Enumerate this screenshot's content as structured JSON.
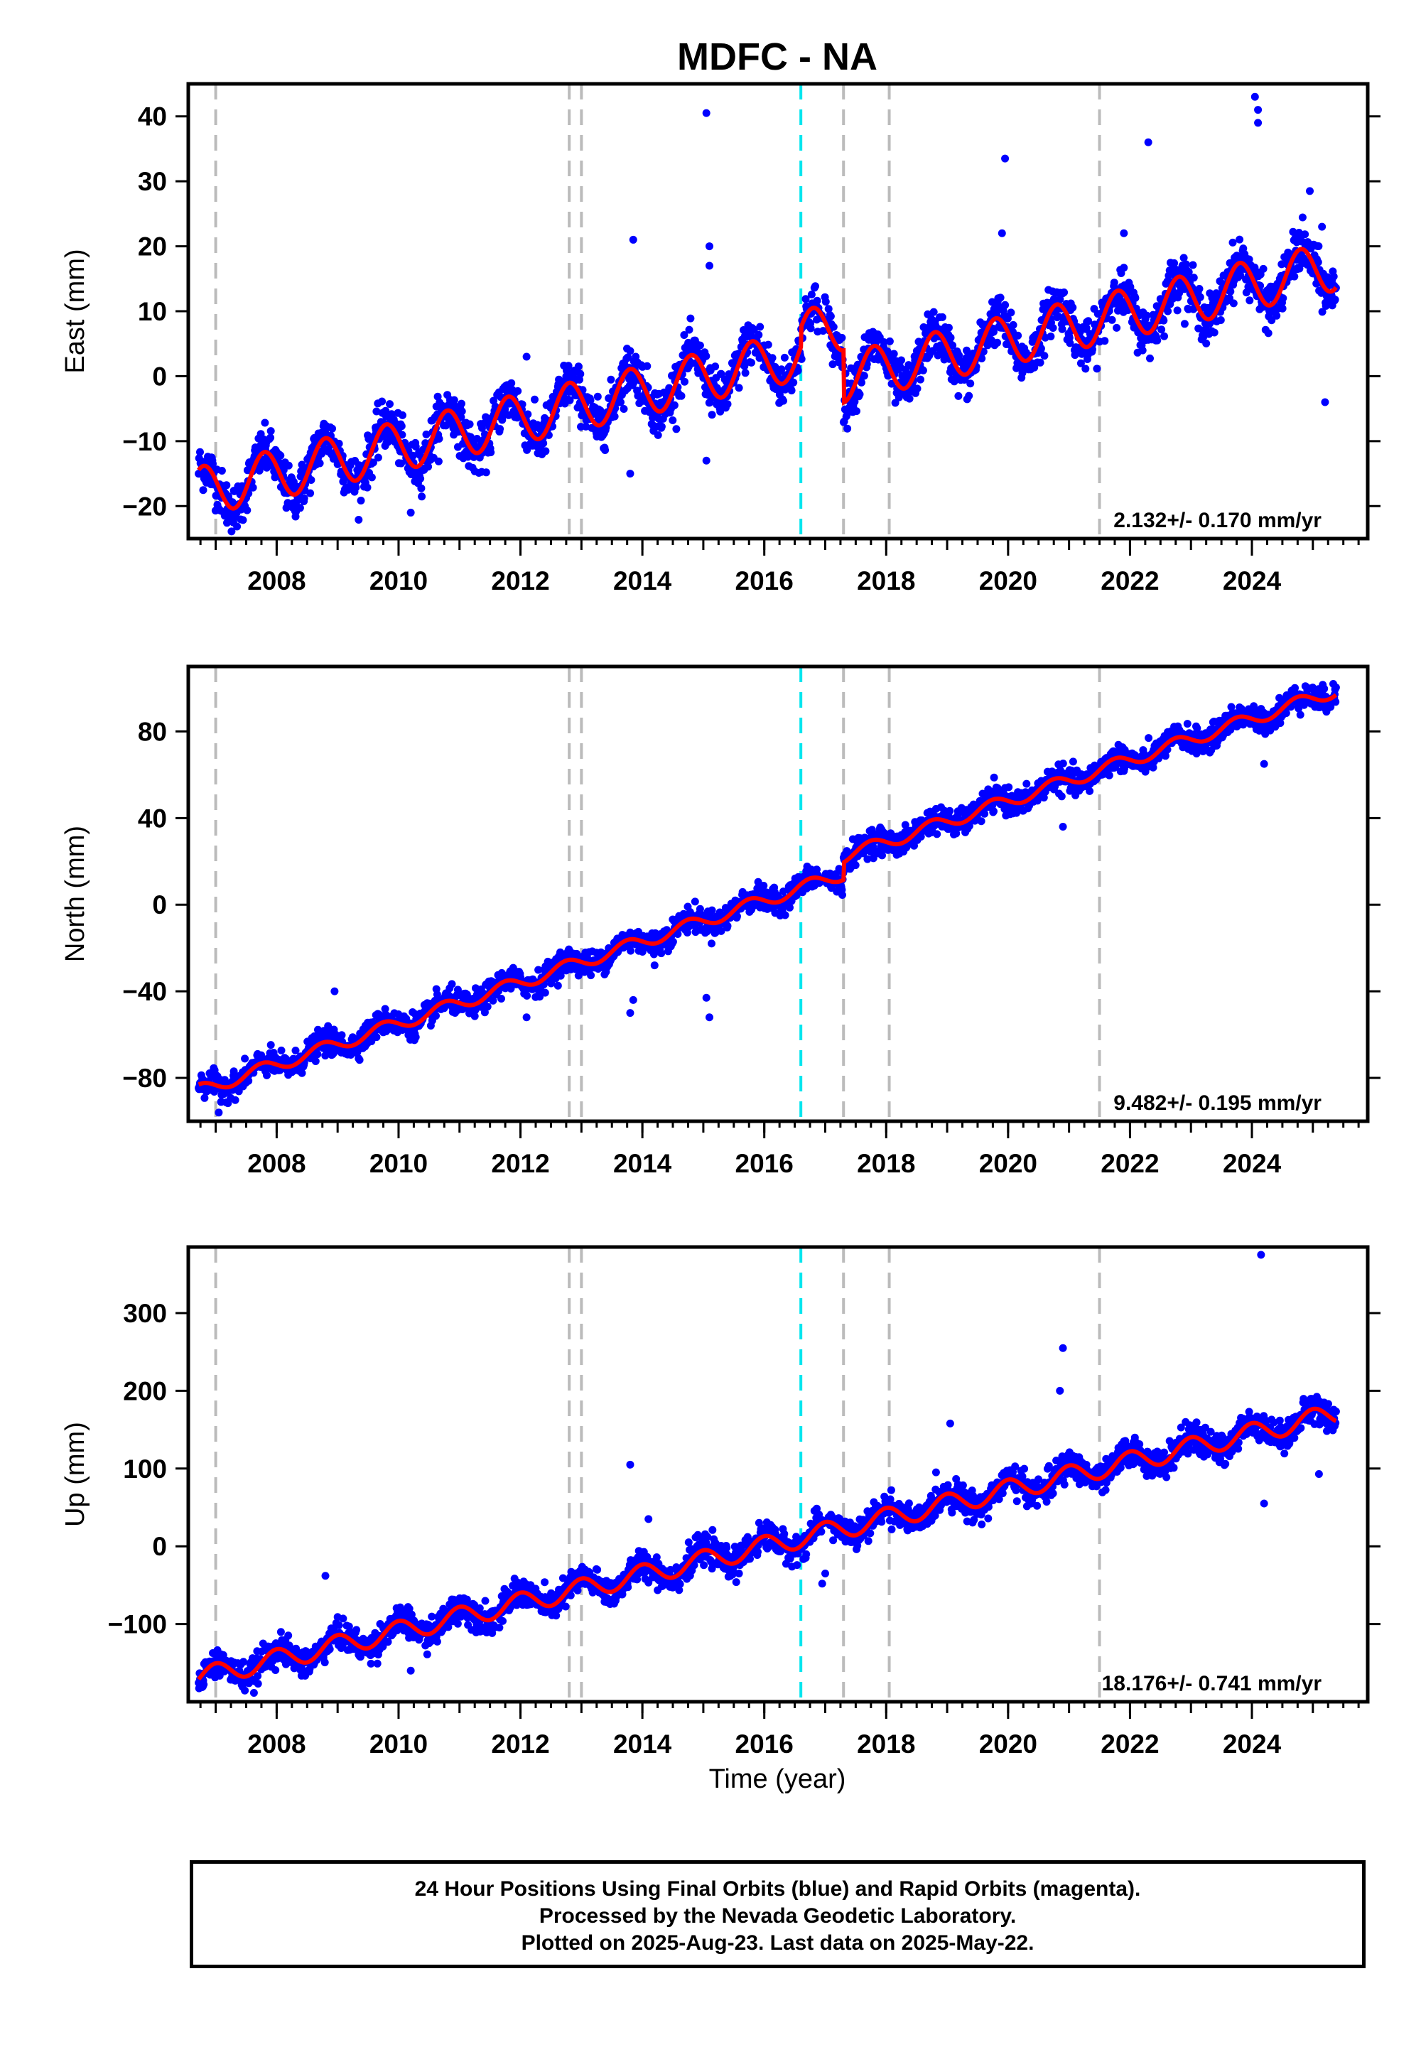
{
  "title": "MDFC - NA",
  "xlabel": "Time (year)",
  "footer": [
    "24 Hour Positions Using Final Orbits (blue) and Rapid Orbits (magenta).",
    "Processed by the Nevada Geodetic Laboratory.",
    "Plotted on 2025-Aug-23. Last data on 2025-May-22."
  ],
  "colors": {
    "final_orbits": "#0000ff",
    "model": "#ff0000",
    "antenna_change": "#bbbbbb",
    "earthquake": "#00e5ee"
  },
  "chart_data": [
    {
      "type": "scatter",
      "component": "East",
      "ylabel": "East (mm)",
      "xlim": [
        2006.55,
        2025.9
      ],
      "ylim": [
        -25,
        45
      ],
      "yticks": [
        -20,
        -10,
        0,
        10,
        20,
        30,
        40
      ],
      "xticks": [
        2008,
        2010,
        2012,
        2014,
        2016,
        2018,
        2020,
        2022,
        2024
      ],
      "rate_label": "2.132+/- 0.170 mm/yr",
      "rate_mm_per_yr": 2.132,
      "rate_sigma": 0.17,
      "antenna_change_epochs": [
        2007.0,
        2012.8,
        2013.0,
        2017.3,
        2018.05,
        2021.5
      ],
      "earthquake_epochs": [
        2016.6
      ],
      "model": {
        "ref_year": 2016.0,
        "intercept": 2.0,
        "annual_amp": 3.8,
        "phase_year": 0.55,
        "offsets": [
          {
            "year": 2016.6,
            "value": 3.0
          },
          {
            "year": 2017.3,
            "value": -8.0
          }
        ]
      },
      "noise": 1.8,
      "outliers": [
        [
          2015.05,
          40.5
        ],
        [
          2015.1,
          20
        ],
        [
          2015.1,
          17
        ],
        [
          2015.05,
          -13
        ],
        [
          2013.8,
          -15
        ],
        [
          2013.85,
          21
        ],
        [
          2019.95,
          33.5
        ],
        [
          2019.9,
          22
        ],
        [
          2021.9,
          22
        ],
        [
          2022.3,
          36
        ],
        [
          2024.05,
          43
        ],
        [
          2024.1,
          41
        ],
        [
          2024.1,
          39
        ],
        [
          2024.95,
          28.5
        ],
        [
          2025.15,
          23
        ],
        [
          2025.2,
          -4
        ],
        [
          2012.1,
          3
        ],
        [
          2010.2,
          -21
        ]
      ]
    },
    {
      "type": "scatter",
      "component": "North",
      "ylabel": "North (mm)",
      "xlim": [
        2006.55,
        2025.9
      ],
      "ylim": [
        -100,
        110
      ],
      "yticks": [
        -80,
        -40,
        0,
        40,
        80
      ],
      "xticks": [
        2008,
        2010,
        2012,
        2014,
        2016,
        2018,
        2020,
        2022,
        2024
      ],
      "rate_label": "9.482+/- 0.195 mm/yr",
      "rate_mm_per_yr": 9.482,
      "rate_sigma": 0.195,
      "antenna_change_epochs": [
        2007.0,
        2012.8,
        2013.0,
        2017.3,
        2018.05,
        2021.5
      ],
      "earthquake_epochs": [
        2016.6
      ],
      "model": {
        "ref_year": 2016.0,
        "intercept": 2.0,
        "annual_amp": 3.0,
        "phase_year": 0.5,
        "offsets": [
          {
            "year": 2017.3,
            "value": 8.0
          }
        ]
      },
      "noise": 2.8,
      "outliers": [
        [
          2015.05,
          -43
        ],
        [
          2015.1,
          -52
        ],
        [
          2013.8,
          -50
        ],
        [
          2013.85,
          -44
        ],
        [
          2014.2,
          -28
        ],
        [
          2020.9,
          36
        ],
        [
          2024.2,
          65
        ],
        [
          2007.05,
          -96
        ],
        [
          2008.95,
          -40
        ],
        [
          2012.1,
          -52
        ]
      ]
    },
    {
      "type": "scatter",
      "component": "Up",
      "ylabel": "Up (mm)",
      "xlim": [
        2006.55,
        2025.9
      ],
      "ylim": [
        -200,
        385
      ],
      "yticks": [
        -100,
        0,
        100,
        200,
        300
      ],
      "xticks": [
        2008,
        2010,
        2012,
        2014,
        2016,
        2018,
        2020,
        2022,
        2024
      ],
      "rate_label": "18.176+/- 0.741 mm/yr",
      "rate_mm_per_yr": 18.176,
      "rate_sigma": 0.741,
      "antenna_change_epochs": [
        2007.0,
        2012.8,
        2013.0,
        2017.3,
        2018.05,
        2021.5
      ],
      "earthquake_epochs": [
        2016.6
      ],
      "model": {
        "ref_year": 2016.0,
        "intercept": 0.0,
        "annual_amp": 13.0,
        "phase_year": 0.75,
        "offsets": []
      },
      "noise": 9.0,
      "outliers": [
        [
          2013.8,
          105
        ],
        [
          2024.15,
          375
        ],
        [
          2020.9,
          255
        ],
        [
          2020.85,
          200
        ],
        [
          2024.2,
          55
        ],
        [
          2025.1,
          93
        ],
        [
          2019.05,
          158
        ],
        [
          2008.8,
          -38
        ],
        [
          2016.95,
          -48
        ],
        [
          2017.0,
          -35
        ],
        [
          2010.2,
          -160
        ],
        [
          2014.1,
          35
        ]
      ]
    }
  ]
}
